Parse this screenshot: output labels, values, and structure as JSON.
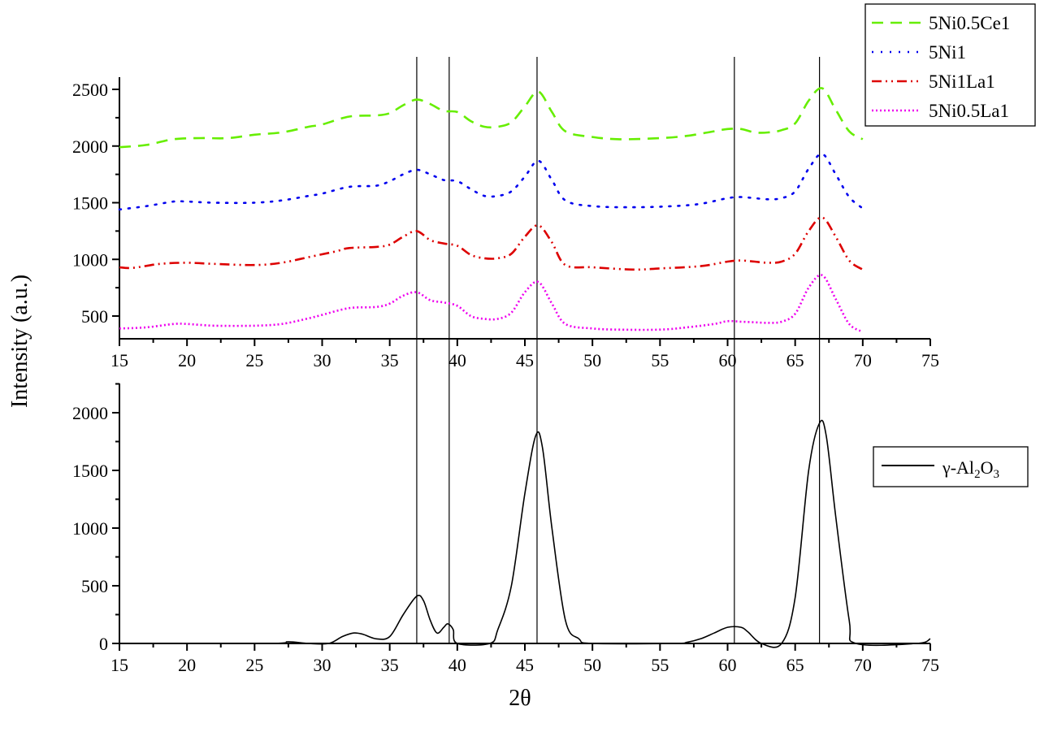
{
  "chart_data": [
    {
      "type": "line",
      "panel": "top",
      "xlabel": "2θ",
      "ylabel": "Intensity (a.u.)",
      "xlim": [
        15,
        75
      ],
      "ylim": [
        300,
        2600
      ],
      "xticks": [
        15,
        20,
        25,
        30,
        35,
        40,
        45,
        50,
        55,
        60,
        65,
        70,
        75
      ],
      "yticks": [
        500,
        1000,
        1500,
        2000,
        2500
      ],
      "legend_position": "top-right",
      "series": [
        {
          "name": "5Ni0.5Ce1",
          "color": "#66ee00",
          "style": "dash",
          "x": [
            15,
            17,
            19,
            21,
            23,
            25,
            27,
            29,
            30,
            32,
            34,
            35,
            36,
            37,
            38,
            39,
            40,
            41,
            42,
            43,
            44,
            45,
            46,
            47,
            48,
            50,
            52,
            55,
            57,
            59,
            60,
            61,
            62,
            63,
            64,
            65,
            66,
            67,
            68,
            69,
            70
          ],
          "y": [
            1990,
            2010,
            2060,
            2070,
            2070,
            2100,
            2120,
            2170,
            2190,
            2260,
            2270,
            2290,
            2360,
            2410,
            2370,
            2310,
            2300,
            2220,
            2170,
            2170,
            2210,
            2350,
            2480,
            2300,
            2130,
            2080,
            2060,
            2070,
            2090,
            2130,
            2150,
            2150,
            2120,
            2120,
            2140,
            2200,
            2400,
            2510,
            2320,
            2130,
            2060
          ]
        },
        {
          "name": "5Ni1",
          "color": "#0000ee",
          "style": "dot",
          "x": [
            15,
            17,
            19,
            20,
            22,
            25,
            27,
            29,
            30,
            32,
            34,
            35,
            36,
            37,
            38,
            39,
            40,
            41,
            42,
            43,
            44,
            45,
            46,
            47,
            48,
            50,
            53,
            56,
            58,
            60,
            61,
            62,
            63,
            64,
            65,
            66,
            67,
            68,
            69,
            70
          ],
          "y": [
            1440,
            1470,
            1510,
            1510,
            1500,
            1500,
            1520,
            1560,
            1580,
            1640,
            1650,
            1690,
            1750,
            1790,
            1750,
            1700,
            1690,
            1620,
            1560,
            1560,
            1600,
            1730,
            1870,
            1700,
            1520,
            1470,
            1460,
            1470,
            1490,
            1540,
            1550,
            1540,
            1530,
            1540,
            1600,
            1800,
            1930,
            1750,
            1550,
            1450
          ]
        },
        {
          "name": "5Ni1La1",
          "color": "#dd0000",
          "style": "dashdotdot",
          "x": [
            15,
            16,
            18,
            20,
            22,
            25,
            27,
            29,
            31,
            32,
            34,
            35,
            36,
            37,
            38,
            39,
            40,
            41,
            42,
            43,
            44,
            45,
            46,
            47,
            48,
            50,
            53,
            55,
            58,
            60,
            61,
            62,
            63,
            64,
            65,
            66,
            67,
            68,
            69,
            70
          ],
          "y": [
            930,
            925,
            960,
            970,
            960,
            950,
            970,
            1020,
            1070,
            1100,
            1110,
            1130,
            1200,
            1250,
            1170,
            1140,
            1120,
            1040,
            1010,
            1010,
            1050,
            1200,
            1300,
            1150,
            950,
            930,
            910,
            920,
            940,
            980,
            990,
            980,
            970,
            980,
            1050,
            1250,
            1370,
            1200,
            990,
            910
          ]
        },
        {
          "name": "5Ni0.5La1",
          "color": "#ee00ee",
          "style": "shortdot",
          "x": [
            15,
            17,
            19,
            20,
            22,
            25,
            27,
            29,
            30,
            32,
            34,
            35,
            36,
            37,
            38,
            39,
            40,
            41,
            42,
            43,
            44,
            45,
            46,
            47,
            48,
            50,
            52,
            55,
            57,
            59,
            60,
            61,
            62,
            63,
            64,
            65,
            66,
            67,
            68,
            69,
            70
          ],
          "y": [
            390,
            400,
            430,
            430,
            415,
            415,
            430,
            480,
            510,
            570,
            580,
            610,
            680,
            710,
            640,
            620,
            590,
            500,
            475,
            475,
            530,
            710,
            800,
            610,
            430,
            390,
            380,
            380,
            400,
            430,
            455,
            450,
            445,
            440,
            450,
            520,
            750,
            860,
            650,
            430,
            360
          ]
        }
      ]
    },
    {
      "type": "line",
      "panel": "bottom",
      "xlabel": "2θ",
      "ylabel": "Intensity (a.u.)",
      "xlim": [
        15,
        75
      ],
      "ylim": [
        0,
        2250
      ],
      "xticks": [
        15,
        20,
        25,
        30,
        35,
        40,
        45,
        50,
        55,
        60,
        65,
        70,
        75
      ],
      "yticks": [
        0,
        500,
        1000,
        1500,
        2000
      ],
      "legend_position": "right",
      "series": [
        {
          "name": "γ-Al2O3",
          "legend_main": "γ-Al",
          "legend_sub1": "2",
          "legend_mid": "O",
          "legend_sub2": "3",
          "color": "#000000",
          "style": "solid",
          "x": [
            15,
            26,
            27.5,
            29,
            30.5,
            31.5,
            32.3,
            33,
            34,
            35,
            36,
            37,
            37.5,
            38,
            38.5,
            39,
            39.3,
            39.7,
            40,
            42.4,
            43,
            44,
            45,
            45.8,
            46.3,
            47,
            48,
            49,
            50,
            56,
            57,
            58,
            59,
            60,
            61,
            61.5,
            62.5,
            64,
            65,
            66,
            66.8,
            67.3,
            68,
            69,
            69.5,
            74,
            75
          ],
          "y": [
            0,
            0,
            15,
            0,
            0,
            60,
            90,
            80,
            40,
            60,
            250,
            410,
            370,
            200,
            90,
            140,
            170,
            120,
            0,
            0,
            120,
            500,
            1300,
            1800,
            1700,
            1000,
            200,
            40,
            0,
            0,
            10,
            40,
            90,
            140,
            140,
            100,
            0,
            0,
            400,
            1500,
            1910,
            1800,
            1100,
            200,
            0,
            0,
            40
          ]
        }
      ]
    }
  ],
  "reference_lines_2theta": [
    37.0,
    39.4,
    45.9,
    60.5,
    66.8
  ]
}
